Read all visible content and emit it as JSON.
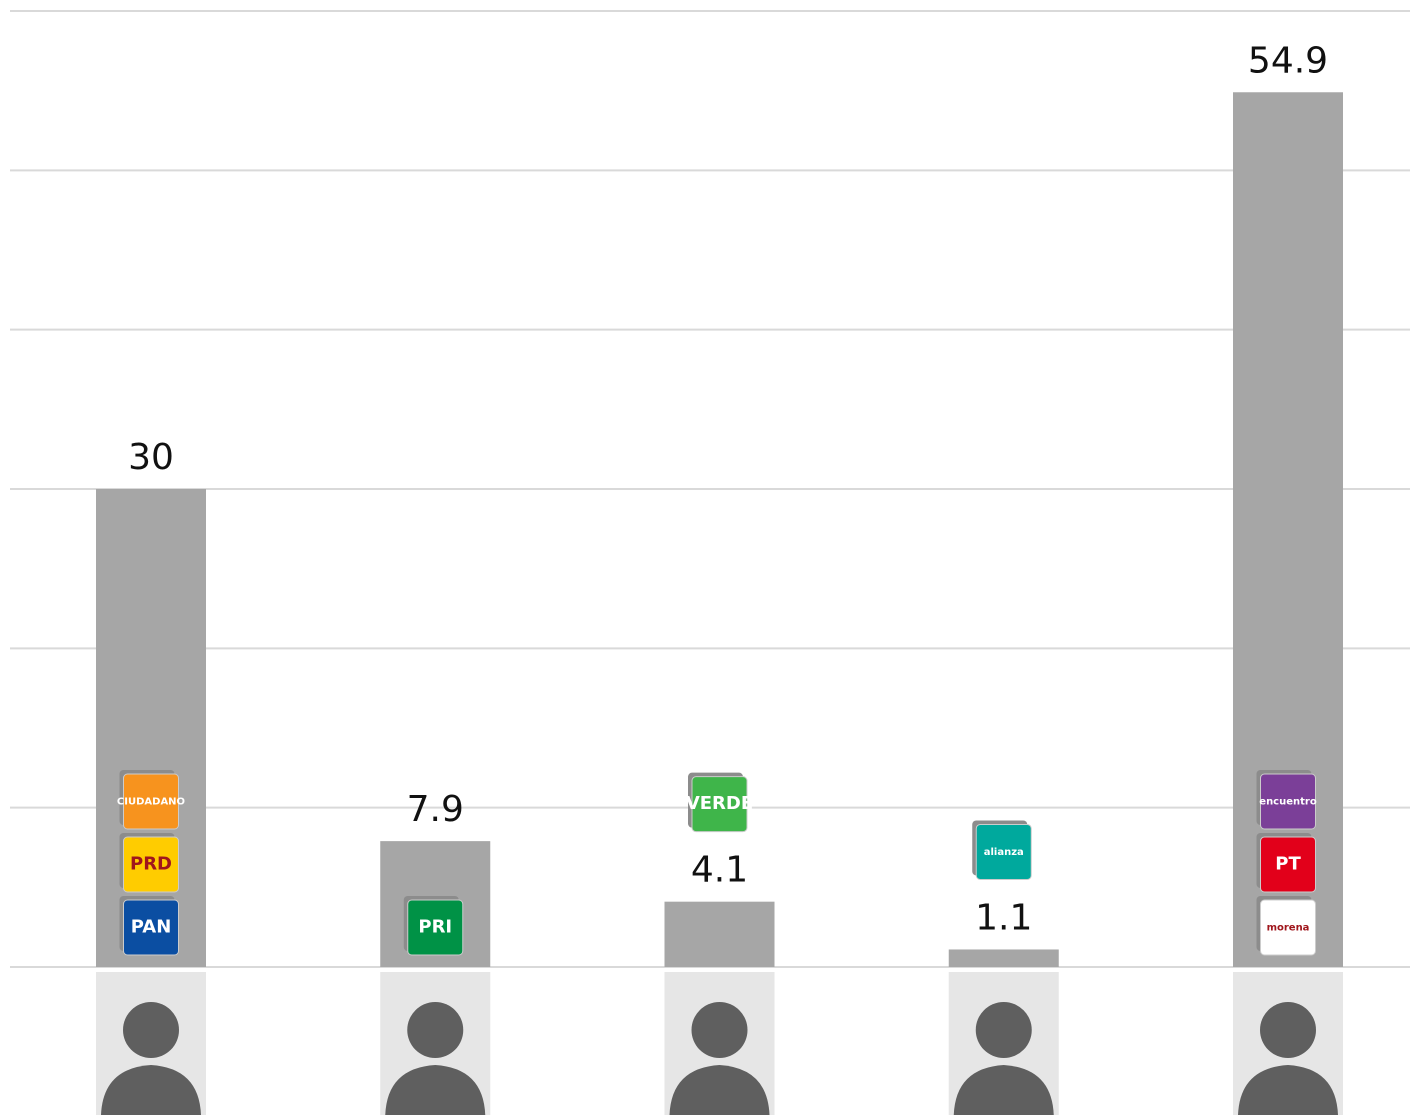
{
  "chart_data": {
    "type": "bar",
    "categories": [
      null,
      null,
      null,
      null,
      null
    ],
    "values": [
      30,
      7.9,
      4.1,
      1.1,
      54.9
    ],
    "color": "#a6a6a6",
    "ylim": [
      0,
      60
    ],
    "yticks": [
      0,
      10,
      20,
      30,
      40,
      50,
      60
    ],
    "grid": true,
    "logos": [
      [
        {
          "text": "CIUDADANO",
          "color": "#f7931e"
        },
        {
          "text": "PRD",
          "color": "#ffcc00"
        },
        {
          "text": "PAN",
          "color": "#0b4ea2"
        }
      ],
      [
        {
          "text": "PRI",
          "color": "#009246"
        }
      ],
      [
        {
          "text": "VERDE",
          "color": "#3fb54a"
        }
      ],
      [
        {
          "text": "alianza",
          "color": "#00a99d"
        }
      ],
      [
        {
          "text": "encuentro",
          "color": "#7b3f98"
        },
        {
          "text": "PT",
          "color": "#e2001a"
        },
        {
          "text": "morena",
          "color": "#ffffff"
        }
      ]
    ]
  }
}
